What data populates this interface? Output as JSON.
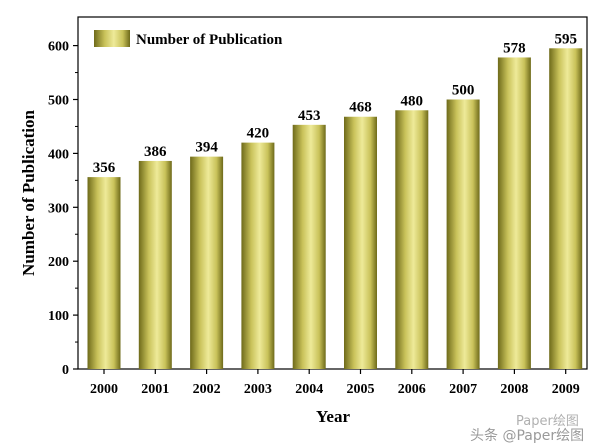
{
  "chart_data": {
    "type": "bar",
    "categories": [
      "2000",
      "2001",
      "2002",
      "2003",
      "2004",
      "2005",
      "2006",
      "2007",
      "2008",
      "2009"
    ],
    "series": [
      {
        "name": "Number of Publication",
        "values": [
          356,
          386,
          394,
          420,
          453,
          468,
          480,
          500,
          578,
          595
        ]
      }
    ],
    "xlabel": "Year",
    "ylabel": "Number of Publication",
    "ylim": [
      0,
      620
    ],
    "yticks": [
      "0",
      "100",
      "200",
      "300",
      "400",
      "500",
      "600"
    ],
    "grid": false,
    "legend_position": "top-left",
    "bar_colors": {
      "light": "#eeea99",
      "mid": "#c9c25a",
      "dark": "#6e6a1a"
    }
  },
  "watermark": {
    "line1": "Paper绘图",
    "line2": "头条 @Paper绘图"
  }
}
